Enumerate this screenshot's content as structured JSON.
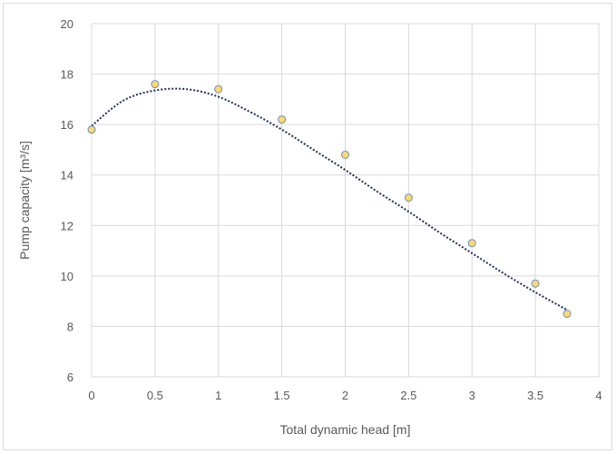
{
  "chart_data": {
    "type": "scatter",
    "title": "",
    "xlabel": "Total dynamic head [m]",
    "ylabel": "Pump capacity [m³/s]",
    "xlim": [
      0,
      4
    ],
    "ylim": [
      6,
      20
    ],
    "xticks": [
      0,
      0.5,
      1,
      1.5,
      2,
      2.5,
      3,
      3.5,
      4
    ],
    "xtick_labels": [
      "0",
      "0.5",
      "1",
      "1.5",
      "2",
      "2.5",
      "3",
      "3.5",
      "4"
    ],
    "yticks": [
      6,
      8,
      10,
      12,
      14,
      16,
      18,
      20
    ],
    "ytick_labels": [
      "6",
      "8",
      "10",
      "12",
      "14",
      "16",
      "18",
      "20"
    ],
    "grid": true,
    "series": [
      {
        "x": [
          0,
          0.5,
          1,
          1.5,
          2,
          2.5,
          3,
          3.5,
          3.75
        ],
        "y": [
          15.8,
          17.6,
          17.4,
          16.2,
          14.8,
          13.1,
          11.3,
          9.7,
          8.5
        ],
        "marker_color": "#ffd966",
        "marker_edge": "#6b8fc7"
      }
    ],
    "trendline": {
      "style": "dotted",
      "color": "#1f2f5c",
      "x": [
        0,
        0.25,
        0.5,
        0.75,
        1,
        1.25,
        1.5,
        1.75,
        2,
        2.25,
        2.5,
        2.75,
        3,
        3.25,
        3.5,
        3.75
      ],
      "y": [
        15.95,
        16.95,
        17.35,
        17.4,
        17.1,
        16.5,
        15.8,
        15.0,
        14.2,
        13.35,
        12.55,
        11.7,
        10.9,
        10.1,
        9.35,
        8.65
      ]
    }
  }
}
